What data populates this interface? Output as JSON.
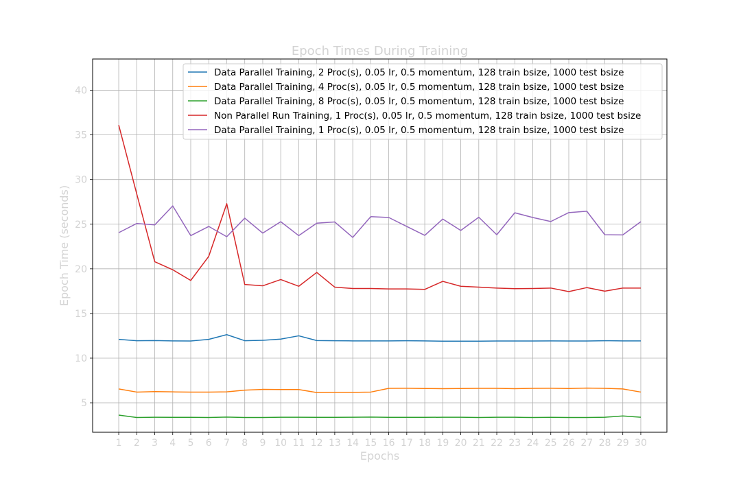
{
  "chart_data": {
    "type": "line",
    "title": "Epoch Times During Training",
    "xlabel": "Epochs",
    "ylabel": "Epoch Time (seconds)",
    "ylim": [
      1.7,
      43.5
    ],
    "xlim": [
      -0.45,
      31.45
    ],
    "grid": true,
    "legend_position": "top-right",
    "x": [
      1,
      2,
      3,
      4,
      5,
      6,
      7,
      8,
      9,
      10,
      11,
      12,
      13,
      14,
      15,
      16,
      17,
      18,
      19,
      20,
      21,
      22,
      23,
      24,
      25,
      26,
      27,
      28,
      29,
      30
    ],
    "y_ticks": [
      5,
      10,
      15,
      20,
      25,
      30,
      35,
      40
    ],
    "series": [
      {
        "name": "Data Parallel Training, 2 Proc(s), 0.05 lr, 0.5 momentum, 128 train bsize, 1000 test bsize",
        "color": "#1f77b4",
        "values": [
          12.1,
          11.95,
          11.97,
          11.93,
          11.92,
          12.1,
          12.63,
          11.95,
          12.0,
          12.13,
          12.5,
          11.97,
          11.95,
          11.93,
          11.93,
          11.93,
          11.95,
          11.93,
          11.9,
          11.9,
          11.9,
          11.92,
          11.92,
          11.92,
          11.93,
          11.92,
          11.92,
          11.95,
          11.93,
          11.93
        ]
      },
      {
        "name": "Data Parallel Training, 4 Proc(s), 0.05 lr, 0.5 momentum, 128 train bsize, 1000 test bsize",
        "color": "#ff7f0e",
        "values": [
          6.55,
          6.2,
          6.25,
          6.22,
          6.2,
          6.2,
          6.22,
          6.42,
          6.5,
          6.48,
          6.48,
          6.15,
          6.17,
          6.17,
          6.2,
          6.62,
          6.63,
          6.6,
          6.58,
          6.6,
          6.62,
          6.62,
          6.58,
          6.62,
          6.63,
          6.6,
          6.65,
          6.62,
          6.55,
          6.2
        ]
      },
      {
        "name": "Data Parallel Training, 8 Proc(s), 0.05 lr, 0.5 momentum, 128 train bsize, 1000 test bsize",
        "color": "#2ca02c",
        "values": [
          3.62,
          3.35,
          3.38,
          3.37,
          3.37,
          3.35,
          3.4,
          3.35,
          3.35,
          3.38,
          3.38,
          3.37,
          3.37,
          3.38,
          3.4,
          3.37,
          3.37,
          3.37,
          3.38,
          3.38,
          3.35,
          3.38,
          3.38,
          3.35,
          3.37,
          3.35,
          3.35,
          3.38,
          3.52,
          3.38
        ]
      },
      {
        "name": "Non Parallel Run Training, 1 Proc(s), 0.05 lr, 0.5 momentum, 128 train bsize, 1000 test bsize",
        "color": "#d62728",
        "values": [
          36.1,
          28.4,
          20.8,
          19.9,
          18.7,
          21.4,
          27.3,
          18.25,
          18.1,
          18.8,
          18.05,
          19.6,
          17.95,
          17.8,
          17.8,
          17.75,
          17.75,
          17.7,
          18.6,
          18.05,
          17.95,
          17.85,
          17.78,
          17.8,
          17.85,
          17.45,
          17.9,
          17.5,
          17.85,
          17.85
        ]
      },
      {
        "name": "Data Parallel Training, 1 Proc(s), 0.05 lr, 0.5 momentum, 128 train bsize, 1000 test bsize",
        "color": "#9467bd",
        "values": [
          24.05,
          25.08,
          24.92,
          27.05,
          23.72,
          24.75,
          23.6,
          25.68,
          24.0,
          25.28,
          23.72,
          25.12,
          25.25,
          23.52,
          25.85,
          25.75,
          24.75,
          23.75,
          25.58,
          24.3,
          25.78,
          23.82,
          26.28,
          25.75,
          25.3,
          26.3,
          26.45,
          23.82,
          23.8,
          25.28
        ]
      }
    ]
  }
}
